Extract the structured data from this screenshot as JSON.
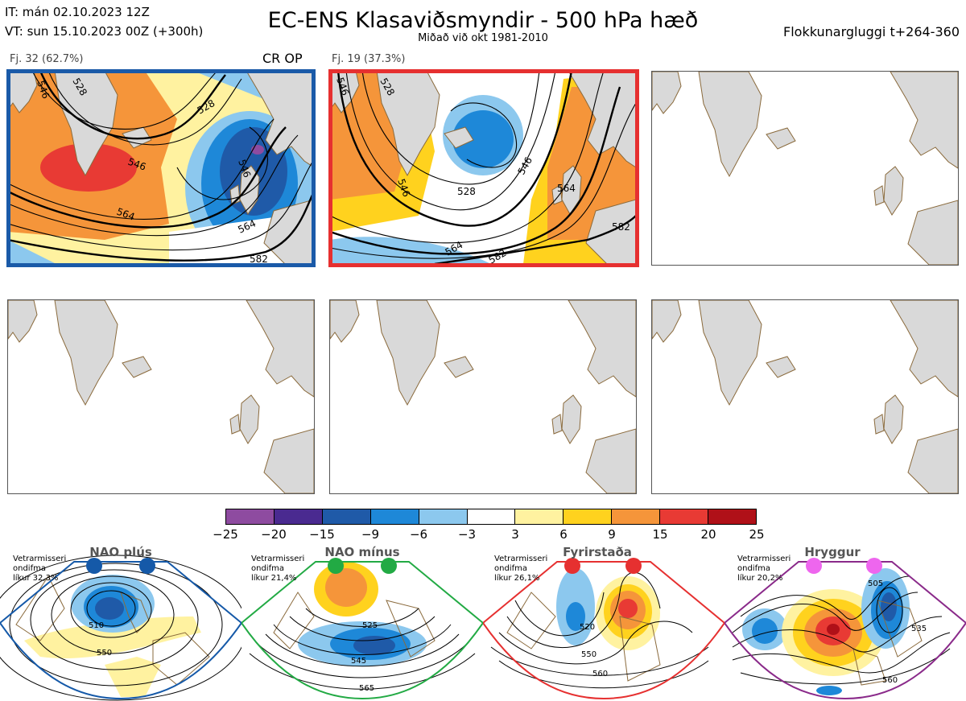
{
  "header": {
    "it_line": "IT: mán 02.10.2023 12Z",
    "vt_line": "VT: sun 15.10.2023 00Z  (+300h)",
    "title": "EC-ENS Klasaviðsmyndir - 500 hPa hæð",
    "subtitle": "Miðað við okt 1981-2010",
    "window": "Flokkunargluggi t+264-360"
  },
  "clusters": [
    {
      "label": "Fj. 32 (62.7%)",
      "tag": "CR OP",
      "frame_color": "#1a5aa8",
      "contours": [
        "546",
        "528",
        "546",
        "528",
        "546",
        "564",
        "564",
        "582"
      ]
    },
    {
      "label": "Fj. 19 (37.3%)",
      "tag": "",
      "frame_color": "#e63030",
      "contours": [
        "546",
        "528",
        "528",
        "546",
        "546",
        "564",
        "564",
        "582",
        "582"
      ]
    }
  ],
  "colorbar": {
    "colors": [
      "#8e4ba0",
      "#4a2a90",
      "#1f5aa8",
      "#1e88d8",
      "#8cc8ee",
      "#ffffff",
      "#fff2a0",
      "#ffd21e",
      "#f5953a",
      "#e83a34",
      "#b01018"
    ],
    "ticks": [
      "−25",
      "−20",
      "−15",
      "−9",
      "−6",
      "−3",
      "3",
      "6",
      "9",
      "15",
      "20",
      "25"
    ]
  },
  "regimes": [
    {
      "name": "NAO plús",
      "info1": "Vetrarmisseri",
      "info2": "ondifma",
      "info3": "líkur 32,3%",
      "dot_color": "#1559a8",
      "frame_color": "#1559a8",
      "c1": "510",
      "c2": "550"
    },
    {
      "name": "NAO mínus",
      "info1": "Vetrarmisseri",
      "info2": "ondifma",
      "info3": "líkur 21,4%",
      "dot_color": "#22aa44",
      "frame_color": "#22aa44",
      "c1": "525",
      "c2": "545",
      "c3": "565"
    },
    {
      "name": "Fyrirstaða",
      "info1": "Vetrarmisseri",
      "info2": "ondifma",
      "info3": "líkur 26,1%",
      "dot_color": "#e63030",
      "frame_color": "#e63030",
      "c1": "520",
      "c2": "550",
      "c3": "560"
    },
    {
      "name": "Hryggur",
      "info1": "Vetrarmisseri",
      "info2": "ondifma",
      "info3": "líkur 20,2%",
      "dot_color": "#ee66ee",
      "frame_color": "#8a2a8a",
      "c1": "505",
      "c2": "535",
      "c3": "560"
    }
  ]
}
